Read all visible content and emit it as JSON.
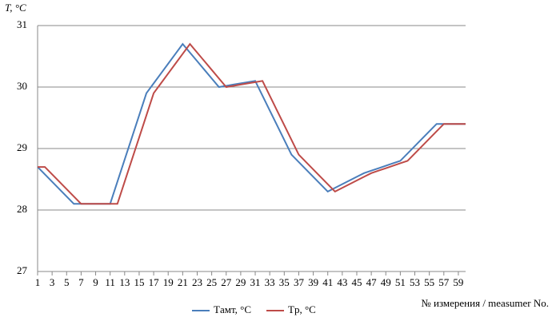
{
  "chart_data": {
    "type": "line",
    "y_label": "T, °C",
    "x_label": "№ измерения / measumer No.",
    "x": [
      1,
      2,
      3,
      4,
      5,
      6,
      7,
      8,
      9,
      10,
      11,
      12,
      13,
      14,
      15,
      16,
      17,
      18,
      19,
      20,
      21,
      22,
      23,
      24,
      25,
      26,
      27,
      28,
      29,
      30,
      31,
      32,
      33,
      34,
      35,
      36,
      37,
      38,
      39,
      40,
      41,
      42,
      43,
      44,
      45,
      46,
      47,
      48,
      49,
      50,
      51,
      52,
      53,
      54,
      55,
      56,
      57,
      58,
      59,
      60
    ],
    "series": [
      {
        "name": "Tамт, °C",
        "color": "#4a7ebb",
        "values": [
          28.7,
          28.58,
          28.46,
          28.34,
          28.22,
          28.1,
          28.1,
          28.1,
          28.1,
          28.1,
          28.1,
          28.46,
          28.82,
          29.18,
          29.54,
          29.9,
          30.06,
          30.22,
          30.38,
          30.54,
          30.7,
          30.56,
          30.42,
          30.28,
          30.14,
          30.0,
          30.02,
          30.04,
          30.06,
          30.08,
          30.1,
          29.86,
          29.62,
          29.38,
          29.14,
          28.9,
          28.78,
          28.66,
          28.54,
          28.42,
          28.3,
          28.36,
          28.42,
          28.48,
          28.54,
          28.6,
          28.64,
          28.68,
          28.72,
          28.76,
          28.8,
          28.92,
          29.04,
          29.16,
          29.28,
          29.4,
          29.4,
          29.4,
          29.4,
          29.4
        ]
      },
      {
        "name": "Tр, °C",
        "color": "#be4b48",
        "values": [
          28.7,
          28.7,
          28.58,
          28.46,
          28.34,
          28.22,
          28.1,
          28.1,
          28.1,
          28.1,
          28.1,
          28.1,
          28.46,
          28.82,
          29.18,
          29.54,
          29.9,
          30.06,
          30.22,
          30.38,
          30.54,
          30.7,
          30.56,
          30.42,
          30.28,
          30.14,
          30.0,
          30.02,
          30.04,
          30.06,
          30.08,
          30.1,
          29.86,
          29.62,
          29.38,
          29.14,
          28.9,
          28.78,
          28.66,
          28.54,
          28.42,
          28.3,
          28.36,
          28.42,
          28.48,
          28.54,
          28.6,
          28.64,
          28.68,
          28.72,
          28.76,
          28.8,
          28.92,
          29.04,
          29.16,
          29.28,
          29.4,
          29.4,
          29.4,
          29.4
        ]
      }
    ],
    "xlim": [
      1,
      60
    ],
    "xticks": [
      1,
      3,
      5,
      7,
      9,
      11,
      13,
      15,
      17,
      19,
      21,
      23,
      25,
      27,
      29,
      31,
      33,
      35,
      37,
      39,
      41,
      43,
      45,
      47,
      49,
      51,
      53,
      55,
      57,
      59
    ],
    "ylim": [
      27,
      31
    ],
    "yticks": [
      27,
      28,
      29,
      30,
      31
    ],
    "grid": true
  }
}
